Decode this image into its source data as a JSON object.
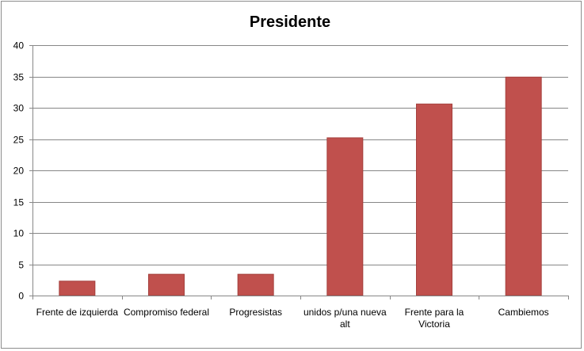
{
  "chart_data": {
    "type": "bar",
    "title": "Presidente",
    "xlabel": "",
    "ylabel": "",
    "categories": [
      [
        "Frente de izquierda"
      ],
      [
        "Compromiso federal"
      ],
      [
        "Progresistas"
      ],
      [
        "unidos p/una nueva",
        "alt"
      ],
      [
        "Frente para la",
        "Victoria"
      ],
      [
        "Cambiemos"
      ]
    ],
    "values": [
      2.3,
      3.4,
      3.4,
      25.2,
      30.6,
      34.9
    ],
    "ylim": [
      0,
      40
    ],
    "yticks": [
      0,
      5,
      10,
      15,
      20,
      25,
      30,
      35,
      40
    ],
    "grid": true,
    "legend": "none",
    "colors": {
      "bar": "#c0504d",
      "bar_edge": "#a5403d",
      "grid": "#878787",
      "axis": "#878787",
      "border": "#8c8c8c"
    }
  }
}
